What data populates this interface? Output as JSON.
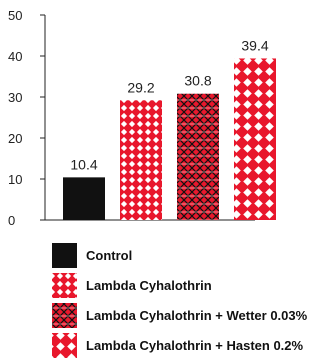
{
  "chart_data": {
    "type": "bar",
    "categories": [
      "Control",
      "Lambda Cyhalothrin",
      "Lambda Cyhalothrin + Wetter 0.03%",
      "Lambda Cyhalothrin + Hasten 0.2%"
    ],
    "values": [
      10.4,
      29.2,
      30.8,
      39.4
    ],
    "data_labels": [
      "10.4",
      "29.2",
      "30.8",
      "39.4"
    ],
    "yticks": [
      "0",
      "10",
      "20",
      "30",
      "40",
      "50"
    ],
    "ylim": [
      0,
      50
    ],
    "title": "",
    "xlabel": "",
    "ylabel": "",
    "grid": false,
    "legend_position": "bottom",
    "series_styles": [
      {
        "fill": "#111111",
        "pattern": "solid"
      },
      {
        "fill": "#e8172c",
        "pattern": "diamond"
      },
      {
        "fill": "#e8172c",
        "pattern": "crosshatch"
      },
      {
        "fill": "#e8172c",
        "pattern": "diamond-large"
      }
    ]
  }
}
